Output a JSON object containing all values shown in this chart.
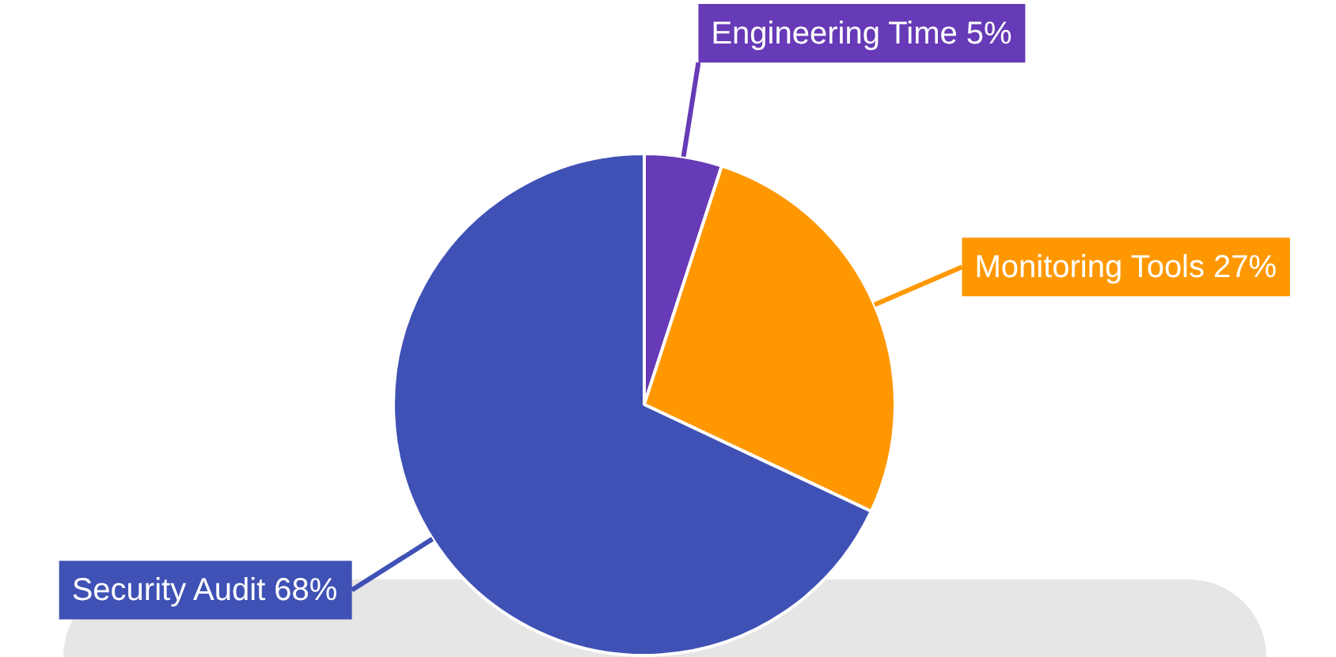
{
  "chart_data": {
    "type": "pie",
    "categories": [
      "Engineering Time",
      "Monitoring Tools",
      "Security Audit"
    ],
    "values": [
      5,
      27,
      68
    ],
    "value_labels": [
      "5%",
      "27%",
      "68%"
    ],
    "colors": [
      "#673ab7",
      "#ff9800",
      "#3f51b5"
    ],
    "legend": false
  }
}
